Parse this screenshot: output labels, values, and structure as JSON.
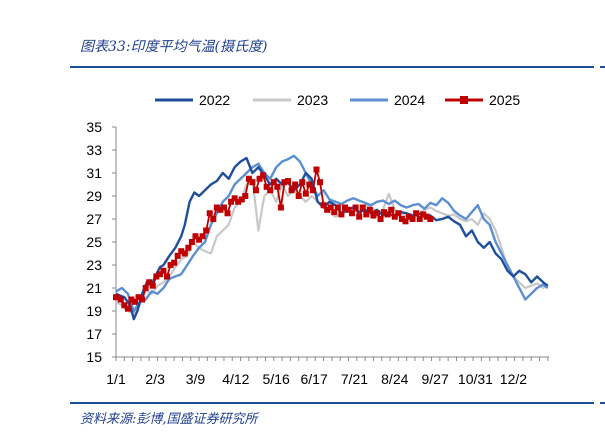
{
  "header": {
    "title": "图表33:印度平均气温(摄氏度)"
  },
  "footer": {
    "source": "资料来源:彭博,国盛证券研究所"
  },
  "colors": {
    "2022": "#1f4e9a",
    "2023": "#c8c8c8",
    "2024": "#5b8fd0",
    "2025": "#c00000",
    "rule": "#1f4e9a"
  },
  "chart_data": {
    "type": "line",
    "title": "",
    "xlabel": "",
    "ylabel": "",
    "ylim": [
      15,
      35
    ],
    "yticks": [
      15,
      17,
      19,
      21,
      23,
      25,
      27,
      29,
      31,
      33,
      35
    ],
    "xlim": [
      0,
      365
    ],
    "x_tick_labels": [
      "1/1",
      "2/3",
      "3/9",
      "4/12",
      "5/16",
      "6/17",
      "7/21",
      "8/24",
      "9/27",
      "10/31",
      "12/2"
    ],
    "x_tick_days": [
      0,
      33,
      67,
      101,
      135,
      167,
      201,
      235,
      269,
      303,
      335
    ],
    "grid": false,
    "legend_position": "top",
    "series": [
      {
        "name": "2022",
        "x": [
          0,
          7,
          12,
          15,
          18,
          22,
          26,
          30,
          33,
          37,
          40,
          45,
          50,
          55,
          58,
          62,
          66,
          70,
          75,
          80,
          85,
          90,
          95,
          100,
          105,
          110,
          115,
          120,
          125,
          130,
          135,
          140,
          145,
          150,
          155,
          160,
          165,
          170,
          175,
          180,
          185,
          190,
          195,
          200,
          205,
          210,
          215,
          220,
          225,
          230,
          235,
          240,
          245,
          250,
          255,
          260,
          265,
          270,
          275,
          280,
          285,
          290,
          295,
          300,
          305,
          310,
          315,
          320,
          325,
          330,
          335,
          340,
          345,
          350,
          355,
          360,
          364
        ],
        "y": [
          20.5,
          20.2,
          19.5,
          18.3,
          19.0,
          20.5,
          21.5,
          21.2,
          22.0,
          22.8,
          23.0,
          23.8,
          24.5,
          25.5,
          26.5,
          28.5,
          29.3,
          29.0,
          29.5,
          30.0,
          30.3,
          31.0,
          30.5,
          31.5,
          32.0,
          32.3,
          31.0,
          31.5,
          30.8,
          30.0,
          30.5,
          30.0,
          30.2,
          29.5,
          30.0,
          31.0,
          30.5,
          28.5,
          28.0,
          28.5,
          28.2,
          27.5,
          27.8,
          28.0,
          27.6,
          27.8,
          27.5,
          27.8,
          27.3,
          27.5,
          27.2,
          27.6,
          27.5,
          27.3,
          27.5,
          27.2,
          27.3,
          26.9,
          27.0,
          27.2,
          26.8,
          26.5,
          25.5,
          26.0,
          25.0,
          24.5,
          25.0,
          24.0,
          23.5,
          22.5,
          22.0,
          22.5,
          22.2,
          21.5,
          22.0,
          21.5,
          21.2
        ]
      },
      {
        "name": "2023",
        "x": [
          0,
          5,
          10,
          15,
          20,
          25,
          30,
          35,
          40,
          45,
          50,
          55,
          60,
          65,
          70,
          75,
          80,
          85,
          90,
          95,
          100,
          105,
          110,
          115,
          120,
          125,
          130,
          135,
          140,
          145,
          150,
          155,
          160,
          165,
          170,
          175,
          180,
          185,
          190,
          195,
          200,
          205,
          210,
          215,
          220,
          225,
          230,
          235,
          240,
          245,
          250,
          255,
          260,
          265,
          270,
          275,
          280,
          285,
          290,
          295,
          300,
          305,
          310,
          315,
          320,
          325,
          330,
          335,
          340,
          345,
          350,
          355,
          360,
          364
        ],
        "y": [
          19.8,
          19.5,
          19.0,
          18.8,
          19.5,
          20.8,
          20.5,
          21.2,
          21.5,
          22.0,
          22.8,
          23.5,
          23.8,
          25.0,
          24.5,
          24.2,
          24.0,
          25.5,
          26.0,
          26.5,
          28.0,
          28.5,
          30.0,
          30.5,
          26.0,
          29.0,
          29.5,
          28.5,
          30.0,
          29.0,
          29.5,
          29.0,
          28.5,
          29.0,
          28.5,
          28.0,
          27.6,
          27.2,
          27.4,
          27.7,
          27.8,
          27.6,
          28.2,
          28.0,
          27.6,
          27.8,
          29.2,
          27.8,
          27.5,
          27.2,
          27.0,
          27.5,
          27.8,
          28.0,
          27.7,
          27.5,
          27.3,
          27.4,
          27.0,
          26.8,
          27.0,
          26.5,
          27.5,
          27.0,
          26.0,
          24.5,
          22.8,
          22.0,
          21.5,
          21.0,
          21.2,
          21.4,
          21.0,
          21.2
        ]
      },
      {
        "name": "2024",
        "x": [
          0,
          5,
          10,
          15,
          20,
          25,
          30,
          35,
          40,
          45,
          50,
          55,
          60,
          65,
          70,
          75,
          80,
          85,
          90,
          95,
          100,
          105,
          110,
          115,
          120,
          125,
          130,
          135,
          140,
          145,
          150,
          155,
          160,
          165,
          170,
          175,
          180,
          185,
          190,
          195,
          200,
          205,
          210,
          215,
          220,
          225,
          230,
          235,
          240,
          245,
          250,
          255,
          260,
          265,
          270,
          275,
          280,
          285,
          290,
          295,
          300,
          305,
          310,
          315,
          320,
          325,
          330,
          335,
          340,
          345,
          350,
          355,
          360,
          364
        ],
        "y": [
          20.7,
          21.0,
          20.5,
          19.0,
          19.8,
          20.0,
          20.7,
          20.5,
          21.0,
          21.8,
          22.0,
          22.2,
          23.0,
          23.8,
          24.5,
          25.0,
          26.5,
          27.5,
          28.5,
          29.0,
          30.0,
          30.5,
          31.0,
          31.5,
          31.8,
          31.0,
          30.5,
          31.5,
          32.0,
          32.2,
          32.5,
          32.0,
          31.0,
          30.0,
          29.0,
          29.5,
          28.7,
          28.5,
          28.3,
          28.6,
          28.8,
          28.6,
          28.4,
          28.2,
          28.5,
          28.6,
          28.3,
          28.6,
          28.2,
          28.0,
          28.2,
          28.3,
          27.9,
          28.4,
          28.2,
          28.8,
          28.4,
          27.7,
          27.3,
          27.0,
          27.6,
          28.2,
          27.0,
          26.5,
          25.0,
          24.0,
          23.0,
          22.0,
          21.0,
          20.0,
          20.5,
          21.0,
          21.3,
          21.0
        ]
      },
      {
        "name": "2025",
        "x": [
          0,
          4,
          7,
          10,
          13,
          16,
          19,
          22,
          25,
          28,
          31,
          34,
          37,
          40,
          43,
          46,
          49,
          52,
          55,
          58,
          61,
          64,
          67,
          70,
          73,
          76,
          79,
          82,
          85,
          88,
          91,
          94,
          97,
          100,
          103,
          106,
          109,
          112,
          115,
          118,
          121,
          124,
          127,
          130,
          133,
          136,
          139,
          142,
          145,
          148,
          151,
          154,
          157,
          160,
          163,
          166,
          169,
          172,
          175,
          178,
          181,
          184,
          187,
          190,
          193,
          196,
          199,
          202,
          205,
          208,
          211,
          214,
          217,
          220,
          223,
          226,
          229,
          232,
          235,
          238,
          241,
          244,
          247,
          250,
          253,
          256,
          259,
          262,
          265
        ],
        "y": [
          20.2,
          20.0,
          19.5,
          19.2,
          20.0,
          19.8,
          20.2,
          20.0,
          21.0,
          21.5,
          21.2,
          22.0,
          22.2,
          22.5,
          22.0,
          23.0,
          23.2,
          23.8,
          24.2,
          24.0,
          24.5,
          25.0,
          25.5,
          25.2,
          25.5,
          26.0,
          27.5,
          27.0,
          28.0,
          27.8,
          28.0,
          27.5,
          28.5,
          28.8,
          28.5,
          28.7,
          29.0,
          30.5,
          30.2,
          29.5,
          30.5,
          30.8,
          29.8,
          29.5,
          30.2,
          29.8,
          28.0,
          30.2,
          30.3,
          29.5,
          30.0,
          29.0,
          30.2,
          29.2,
          30.0,
          29.5,
          31.3,
          30.2,
          28.2,
          27.8,
          28.0,
          27.6,
          28.0,
          27.4,
          28.0,
          27.8,
          27.5,
          28.0,
          27.2,
          28.0,
          27.4,
          27.8,
          27.3,
          27.5,
          27.0,
          27.6,
          27.4,
          27.8,
          27.2,
          27.5,
          27.0,
          26.8,
          27.2,
          27.0,
          27.5,
          27.0,
          27.4,
          27.2,
          27.0
        ]
      }
    ]
  }
}
